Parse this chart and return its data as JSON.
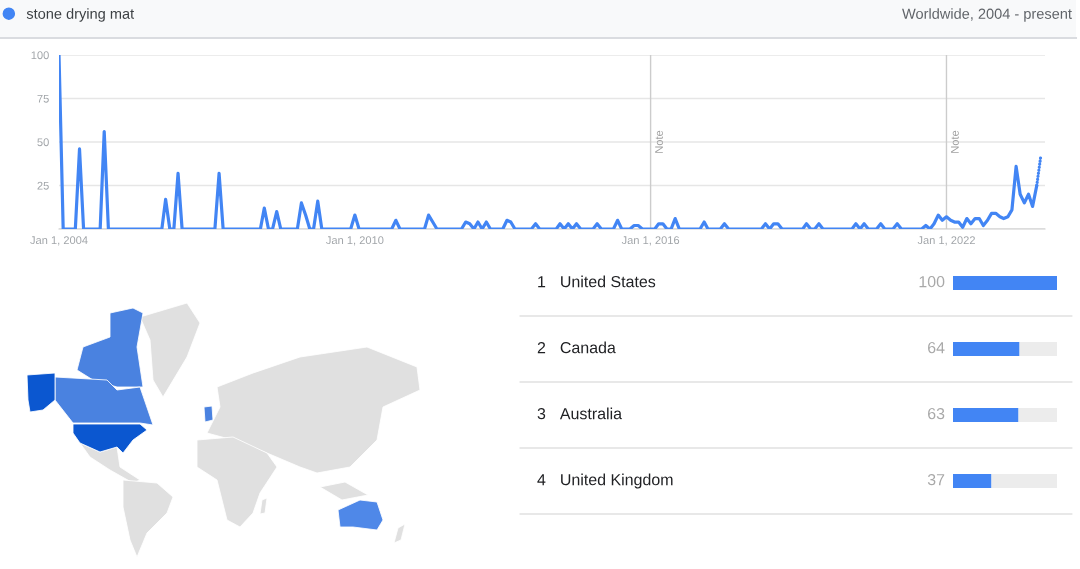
{
  "chart_data": [
    {
      "type": "line",
      "legend": "top left",
      "annotations": [
        "Worldwide, 2004 - present"
      ],
      "marker": "none",
      "line_style": "solid",
      "grid": "y",
      "series": [
        {
          "name": "stone drying mat",
          "color": "#4285f4",
          "x": [
            "2004-01",
            "2004-02",
            "2004-05",
            "2004-06",
            "2004-07",
            "2004-11",
            "2004-12",
            "2005-01",
            "2006-02",
            "2006-03",
            "2006-04",
            "2006-05",
            "2006-06",
            "2006-07",
            "2007-03",
            "2007-04",
            "2007-05",
            "2008-02",
            "2008-03",
            "2008-04",
            "2008-05",
            "2008-06",
            "2008-07",
            "2008-11",
            "2008-12",
            "2009-01",
            "2009-02",
            "2009-03",
            "2009-04",
            "2009-05",
            "2009-12",
            "2010-01",
            "2010-02",
            "2010-10",
            "2010-11",
            "2010-12",
            "2011-06",
            "2011-07",
            "2011-08",
            "2011-09",
            "2012-03",
            "2012-04",
            "2012-05",
            "2012-06",
            "2012-07",
            "2012-08",
            "2012-09",
            "2012-10",
            "2013-01",
            "2013-02",
            "2013-03",
            "2013-04",
            "2013-08",
            "2013-09",
            "2013-10",
            "2014-02",
            "2014-03",
            "2014-04",
            "2014-05",
            "2014-06",
            "2014-07",
            "2014-08",
            "2014-11",
            "2014-12",
            "2015-01",
            "2015-04",
            "2015-05",
            "2015-06",
            "2015-08",
            "2015-09",
            "2015-10",
            "2015-11",
            "2016-02",
            "2016-03",
            "2016-04",
            "2016-05",
            "2016-06",
            "2016-07",
            "2016-08",
            "2017-01",
            "2017-02",
            "2017-03",
            "2017-06",
            "2017-07",
            "2017-08",
            "2018-04",
            "2018-05",
            "2018-06",
            "2018-07",
            "2018-08",
            "2018-09",
            "2019-02",
            "2019-03",
            "2019-04",
            "2019-05",
            "2019-06",
            "2019-07",
            "2020-02",
            "2020-03",
            "2020-04",
            "2020-05",
            "2020-06",
            "2020-08",
            "2020-09",
            "2020-10",
            "2020-12",
            "2021-01",
            "2021-02",
            "2021-07",
            "2021-08",
            "2021-09",
            "2021-10",
            "2021-11",
            "2021-12",
            "2022-01",
            "2022-02",
            "2022-03",
            "2022-04",
            "2022-05",
            "2022-06",
            "2022-07",
            "2022-08",
            "2022-09",
            "2022-10",
            "2022-11",
            "2022-12",
            "2023-01",
            "2023-02",
            "2023-03",
            "2023-04",
            "2023-05",
            "2023-06",
            "2023-07",
            "2023-08",
            "2023-09",
            "2023-10",
            "2023-11"
          ],
          "values": [
            100,
            0,
            0,
            46,
            0,
            0,
            56,
            0,
            0,
            17,
            0,
            0,
            32,
            0,
            0,
            32,
            0,
            0,
            12,
            0,
            0,
            10,
            0,
            0,
            15,
            8,
            0,
            0,
            16,
            0,
            0,
            8,
            0,
            0,
            5,
            0,
            0,
            8,
            4,
            0,
            0,
            4,
            3,
            0,
            4,
            0,
            4,
            0,
            0,
            5,
            4,
            0,
            0,
            3,
            0,
            0,
            3,
            0,
            3,
            0,
            3,
            0,
            0,
            3,
            0,
            0,
            5,
            0,
            0,
            2,
            2,
            0,
            0,
            3,
            3,
            0,
            0,
            6,
            0,
            0,
            4,
            0,
            0,
            3,
            0,
            0,
            3,
            0,
            3,
            3,
            0,
            0,
            3,
            0,
            0,
            3,
            0,
            0,
            3,
            0,
            3,
            0,
            0,
            3,
            0,
            0,
            3,
            0,
            0,
            2,
            0,
            3,
            8,
            5,
            7,
            5,
            4,
            4,
            1,
            6,
            3,
            6,
            6,
            2,
            5,
            9,
            9,
            7,
            6,
            7,
            11,
            36,
            20,
            15,
            20,
            13,
            25
          ]
        },
        {
          "color": "#4285f4",
          "line_style": "dotted",
          "x": [
            "2023-11",
            "2023-12"
          ],
          "values": [
            25,
            42
          ]
        }
      ],
      "xlim": [
        "2004-01",
        "2024-01"
      ],
      "xticks": [
        {
          "value": "2004-01-01",
          "label": "Jan 1, 2004"
        },
        {
          "value": "2010-01-01",
          "label": "Jan 1, 2010"
        },
        {
          "value": "2016-01-01",
          "label": "Jan 1, 2016"
        },
        {
          "value": "2022-01-01",
          "label": "Jan 1, 2022"
        }
      ],
      "ylim": [
        0,
        100
      ],
      "yticks": [
        {
          "value": 0,
          "label": null
        },
        25,
        50,
        75,
        100
      ],
      "ref_lines": [
        {
          "axis": "x",
          "value": "2016-01-01",
          "label": "Note",
          "color": "#cccccc"
        },
        {
          "axis": "x",
          "value": "2022-01-01",
          "label": "Note",
          "color": "#cccccc"
        }
      ]
    },
    {
      "type": "bar",
      "orientation": "horizontal",
      "stacked": true,
      "tick_labels": "y",
      "categories": [
        "1 United States",
        "2 Canada",
        "3 Australia",
        "4 United Kingdom"
      ],
      "series": [
        {
          "color": "#4285f4",
          "values": [
            100,
            64,
            63,
            37
          ],
          "value_labels": [
            "100",
            "64",
            "63",
            "37"
          ]
        },
        {
          "color": "#ececec",
          "values": [
            0,
            36,
            37,
            63
          ]
        }
      ],
      "xlim": [
        0,
        100
      ]
    }
  ]
}
